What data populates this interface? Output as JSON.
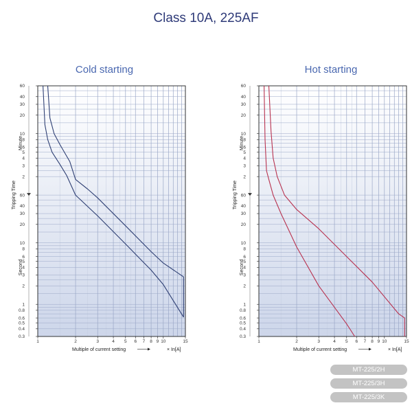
{
  "title": "Class 10A, 225AF",
  "x_axis_label": "Multiple of current setting",
  "x_unit_label": "× In[A]",
  "y_axis_label": "Tripping Time",
  "unit_minute": "Minute",
  "unit_second": "Second",
  "x_ticks": [
    "1",
    "2",
    "3",
    "4",
    "5",
    "6",
    "7",
    "8",
    "9",
    "10",
    "15"
  ],
  "minute_ticks": [
    "60",
    "40",
    "30",
    "20",
    "10",
    "8",
    "6",
    "5",
    "4",
    "3",
    "2"
  ],
  "second_ticks": [
    "60",
    "40",
    "30",
    "20",
    "10",
    "8",
    "6",
    "5",
    "4",
    "3",
    "2",
    "1",
    "0.8",
    "0.6",
    "0.5",
    "0.4",
    "0.3"
  ],
  "models": [
    "MT-225/2H",
    "MT-225/3H",
    "MT-225/3K"
  ],
  "colors": {
    "cold": "#2e3f73",
    "hot": "#b8324f",
    "grid": "#9aa7c7",
    "title": "#2e3a78"
  },
  "chart_data": [
    {
      "type": "line",
      "title": "Cold starting",
      "xscale": "log",
      "yscale": "log",
      "xlim": [
        1,
        15
      ],
      "ylim_seconds": [
        0.3,
        3600
      ],
      "series": [
        {
          "x": [
            1.1,
            1.14,
            1.2,
            1.3,
            1.5,
            1.7,
            2,
            3,
            5,
            8,
            10,
            14.5,
            14.5
          ],
          "y_seconds": [
            3600,
            840,
            480,
            300,
            190,
            125,
            60,
            27.5,
            9.6,
            3.6,
            2.1,
            0.62,
            0.62
          ]
        },
        {
          "x": [
            1.2,
            1.25,
            1.35,
            1.5,
            1.8,
            2,
            2.5,
            3,
            5,
            8,
            10,
            14.5,
            14.5
          ],
          "y_seconds": [
            3600,
            1080,
            600,
            400,
            210,
            108,
            75,
            54,
            19,
            7.2,
            4.7,
            2.8,
            0.62
          ]
        }
      ]
    },
    {
      "type": "line",
      "title": "Hot starting",
      "xscale": "log",
      "yscale": "log",
      "xlim": [
        1,
        15
      ],
      "ylim_seconds": [
        0.3,
        3600
      ],
      "series": [
        {
          "x": [
            1.1,
            1.12,
            1.15,
            1.2,
            1.3,
            1.5,
            2,
            3,
            5,
            5.8
          ],
          "y_seconds": [
            3600,
            480,
            150,
            108,
            60,
            30,
            8.6,
            2,
            0.48,
            0.3
          ]
        },
        {
          "x": [
            1.2,
            1.25,
            1.3,
            1.4,
            1.6,
            2,
            3,
            5,
            8,
            13,
            14.5,
            14.5
          ],
          "y_seconds": [
            3600,
            660,
            240,
            120,
            60,
            35,
            17,
            6,
            2.3,
            0.7,
            0.6,
            0.3
          ]
        }
      ]
    }
  ]
}
